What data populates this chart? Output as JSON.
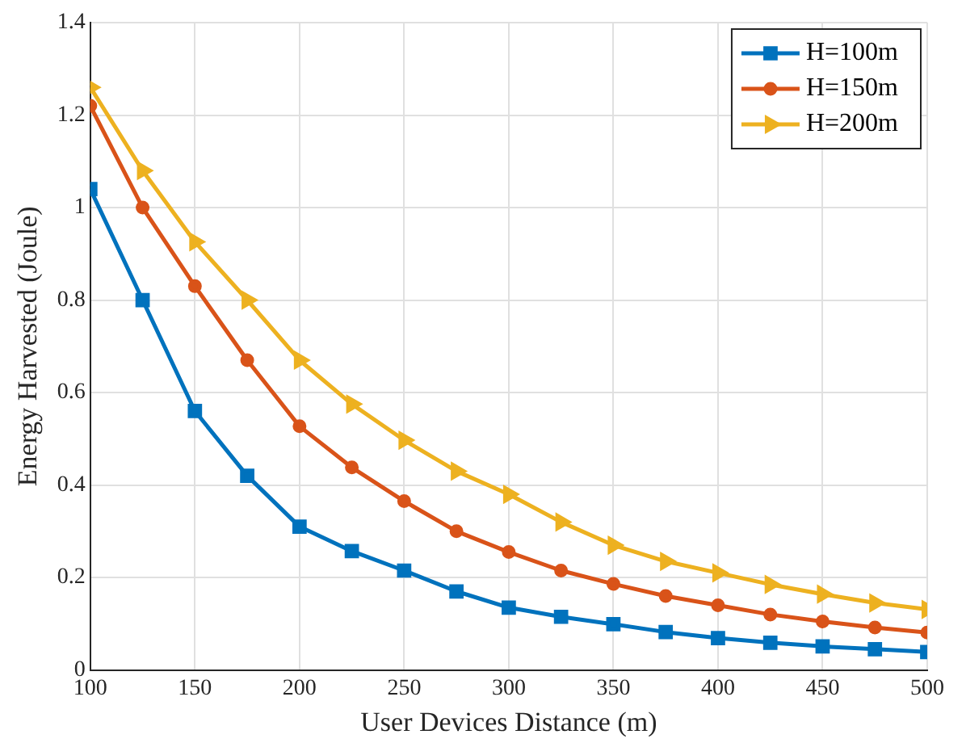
{
  "chart_data": {
    "type": "line",
    "xlabel": "User Devices Distance (m)",
    "ylabel": "Energy Harvested (Joule)",
    "x": [
      100,
      125,
      150,
      175,
      200,
      225,
      250,
      275,
      300,
      325,
      350,
      375,
      400,
      425,
      450,
      475,
      500
    ],
    "xlim": [
      100,
      500
    ],
    "xticks": [
      100,
      150,
      200,
      250,
      300,
      350,
      400,
      450,
      500
    ],
    "ylim": [
      0,
      1.4
    ],
    "yticks": [
      0,
      0.2,
      0.4,
      0.6,
      0.8,
      1,
      1.2,
      1.4
    ],
    "grid": true,
    "legend": "top right",
    "series": [
      {
        "name": "H=100m",
        "color": "#0072bd",
        "marker": "square",
        "values": [
          1.04,
          0.8,
          0.56,
          0.42,
          0.31,
          0.257,
          0.215,
          0.17,
          0.135,
          0.115,
          0.099,
          0.082,
          0.069,
          0.059,
          0.051,
          0.045,
          0.039
        ]
      },
      {
        "name": "H=150m",
        "color": "#d95319",
        "marker": "circle",
        "values": [
          1.22,
          1.0,
          0.83,
          0.67,
          0.527,
          0.438,
          0.365,
          0.3,
          0.255,
          0.215,
          0.186,
          0.16,
          0.14,
          0.12,
          0.105,
          0.092,
          0.081
        ]
      },
      {
        "name": "H=200m",
        "color": "#edb120",
        "marker": "triangle",
        "values": [
          1.26,
          1.08,
          0.926,
          0.8,
          0.67,
          0.575,
          0.497,
          0.43,
          0.38,
          0.32,
          0.27,
          0.235,
          0.21,
          0.185,
          0.164,
          0.145,
          0.131
        ]
      }
    ]
  }
}
